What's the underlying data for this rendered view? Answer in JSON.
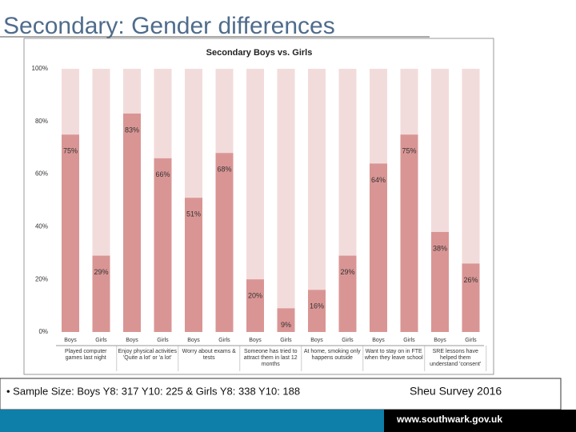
{
  "page_title": "Secondary: Gender differences",
  "chart_data": {
    "type": "bar",
    "title": "Secondary Boys vs. Girls",
    "categories": [
      "Boys",
      "Girls",
      "Boys",
      "Girls",
      "Boys",
      "Girls",
      "Boys",
      "Girls",
      "Boys",
      "Girls",
      "Boys",
      "Girls",
      "Boys",
      "Girls"
    ],
    "groups": [
      "Played computer games last night",
      "Enjoy physical activities 'Quite a lot' or 'a lot'",
      "Worry about exams & tests",
      "Someone has tried to attract them in last 12 months",
      "At home, smoking only happens outside",
      "Want to stay on in FTE when they leave school",
      "SRE lessons have helped them understand 'consent'"
    ],
    "values": [
      75,
      29,
      83,
      66,
      51,
      68,
      20,
      9,
      16,
      29,
      64,
      75,
      38,
      26
    ],
    "value_labels": [
      "75%",
      "29%",
      "83%",
      "66%",
      "51%",
      "68%",
      "20%",
      "9%",
      "16%",
      "29%",
      "64%",
      "75%",
      "38%",
      "26%"
    ],
    "color": "#d99594",
    "track_color": "#f2dcdb",
    "ylim": [
      0,
      100
    ],
    "yticks": [
      {
        "value": 0,
        "label": "0%"
      },
      {
        "value": 20,
        "label": "20%"
      },
      {
        "value": 40,
        "label": "40%"
      },
      {
        "value": 60,
        "label": "60%"
      },
      {
        "value": 80,
        "label": "80%"
      },
      {
        "value": 100,
        "label": "100%"
      }
    ]
  },
  "footer": {
    "sample": "• Sample Size:  Boys Y8: 317   Y10: 225   & Girls Y8: 338   Y10: 188",
    "source": "Sheu Survey 2016",
    "url": "www.southwark.gov.uk"
  }
}
